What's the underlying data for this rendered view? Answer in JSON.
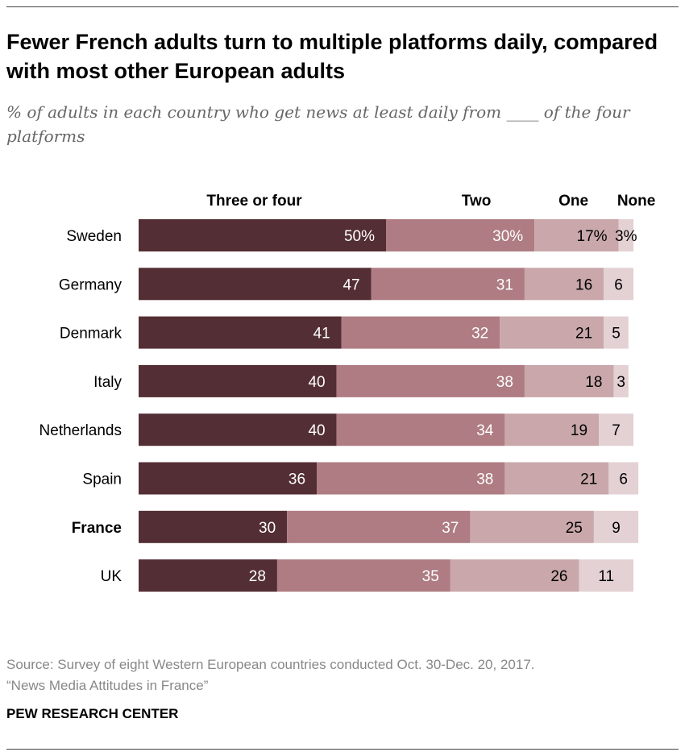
{
  "title": "Fewer French adults turn to multiple platforms daily, compared with most other European adults",
  "subtitle": "% of adults in each country who get news at least daily from ____ of the four platforms",
  "source": "Source: Survey of eight Western European countries conducted Oct. 30-Dec. 20, 2017.",
  "report": "“News Media Attitudes in France”",
  "brand": "PEW RESEARCH CENTER",
  "chart_data": {
    "type": "bar",
    "orientation": "horizontal-stacked",
    "categories": [
      "Sweden",
      "Germany",
      "Denmark",
      "Italy",
      "Netherlands",
      "Spain",
      "France",
      "UK"
    ],
    "highlight": "France",
    "series": [
      {
        "name": "Three or four",
        "color": "#532e34",
        "values": [
          50,
          47,
          41,
          40,
          40,
          36,
          30,
          28
        ]
      },
      {
        "name": "Two",
        "color": "#ae7c82",
        "values": [
          30,
          31,
          32,
          38,
          34,
          38,
          37,
          35
        ]
      },
      {
        "name": "One",
        "color": "#c9a7aa",
        "values": [
          17,
          16,
          21,
          18,
          19,
          21,
          25,
          26
        ]
      },
      {
        "name": "None",
        "color": "#e3d1d4",
        "values": [
          3,
          6,
          5,
          3,
          7,
          6,
          9,
          11
        ]
      }
    ],
    "value_suffix_first_row": "%",
    "legend": "top"
  }
}
